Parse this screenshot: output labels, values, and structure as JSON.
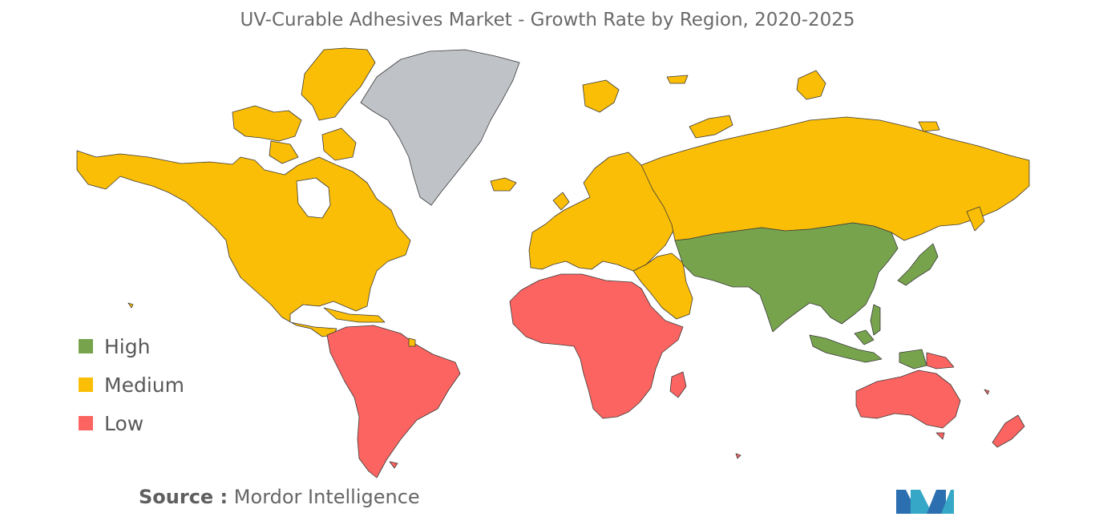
{
  "title": "UV-Curable Adhesives Market - Growth Rate by Region, 2020-2025",
  "colors": {
    "high": "#77a34d",
    "medium": "#fbbe06",
    "low": "#fb6460",
    "no_data": "#bfc3c8",
    "border": "#3a3a3a"
  },
  "legend": [
    {
      "label": "High",
      "color": "#77a34d"
    },
    {
      "label": "Medium",
      "color": "#fbbe06"
    },
    {
      "label": "Low",
      "color": "#fb6460"
    }
  ],
  "regions": [
    {
      "name": "North America",
      "level": "Medium"
    },
    {
      "name": "Greenland",
      "level": "No data"
    },
    {
      "name": "South America",
      "level": "Low"
    },
    {
      "name": "Europe",
      "level": "Medium"
    },
    {
      "name": "Russia",
      "level": "Medium"
    },
    {
      "name": "Middle East",
      "level": "Medium"
    },
    {
      "name": "Africa",
      "level": "Low"
    },
    {
      "name": "Asia-Pacific",
      "level": "High"
    },
    {
      "name": "Australia & New Zealand",
      "level": "Low"
    }
  ],
  "source": {
    "label": "Source :",
    "text": "Mordor Intelligence"
  }
}
